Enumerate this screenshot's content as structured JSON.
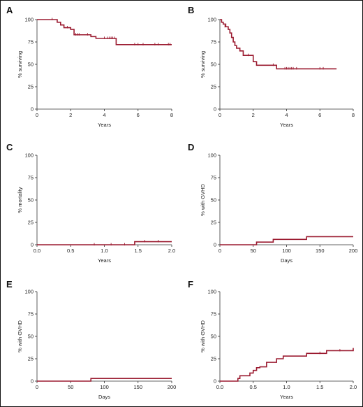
{
  "colors": {
    "curve": "#9b1b30",
    "axis": "#333333"
  },
  "chart_data": [
    {
      "panel": "A",
      "type": "line",
      "step": "post",
      "xlabel": "Years",
      "ylabel": "% surviving",
      "xlim": [
        0,
        8
      ],
      "ylim": [
        0,
        100
      ],
      "xticks": [
        "0",
        "2",
        "4",
        "6",
        "8"
      ],
      "yticks": [
        "0",
        "25",
        "50",
        "75",
        "100"
      ],
      "x": [
        0,
        1.2,
        1.4,
        1.6,
        2.0,
        2.2,
        3.2,
        3.5,
        4.7,
        8.0
      ],
      "y": [
        100,
        97,
        94,
        91,
        89,
        83,
        81,
        79,
        72,
        72
      ],
      "censor_x": [
        0.9,
        1.8,
        2.3,
        2.4,
        2.5,
        3.0,
        4.0,
        4.2,
        4.3,
        4.4,
        4.5,
        4.6,
        5.8,
        6.0,
        6.3,
        7.0,
        7.2,
        7.8,
        7.9
      ],
      "censor_y": [
        100,
        91,
        83,
        83,
        83,
        83,
        79,
        79,
        79,
        79,
        79,
        79,
        72,
        72,
        72,
        72,
        72,
        72,
        72
      ]
    },
    {
      "panel": "B",
      "type": "line",
      "step": "post",
      "xlabel": "Years",
      "ylabel": "% surviving",
      "xlim": [
        0,
        8
      ],
      "ylim": [
        0,
        100
      ],
      "xticks": [
        "0",
        "2",
        "4",
        "6",
        "8"
      ],
      "yticks": [
        "0",
        "25",
        "50",
        "75",
        "100"
      ],
      "x": [
        0,
        0.1,
        0.2,
        0.35,
        0.5,
        0.6,
        0.7,
        0.8,
        0.9,
        1.0,
        1.2,
        1.4,
        2.0,
        2.2,
        3.4,
        7.0
      ],
      "y": [
        100,
        97,
        95,
        92,
        89,
        85,
        80,
        75,
        71,
        68,
        65,
        60,
        53,
        49,
        45,
        45
      ],
      "censor_x": [
        0.3,
        1.7,
        3.2,
        3.9,
        4.0,
        4.1,
        4.2,
        4.3,
        4.4,
        4.6,
        6.0,
        6.2
      ],
      "censor_y": [
        92,
        60,
        49,
        45,
        45,
        45,
        45,
        45,
        45,
        45,
        45,
        45
      ]
    },
    {
      "panel": "C",
      "type": "line",
      "step": "post",
      "xlabel": "Years",
      "ylabel": "% mortality",
      "xlim": [
        0,
        2
      ],
      "ylim": [
        0,
        100
      ],
      "xticks": [
        "0.0",
        "0.5",
        "1.0",
        "1.5",
        "2.0"
      ],
      "yticks": [
        "0",
        "25",
        "50",
        "75",
        "100"
      ],
      "x": [
        0,
        1.45,
        2.0
      ],
      "y": [
        0,
        3.5,
        3.5
      ],
      "censor_x": [
        0.85,
        1.1,
        1.3,
        1.6,
        1.8
      ],
      "censor_y": [
        0,
        0,
        0,
        3.5,
        3.5
      ]
    },
    {
      "panel": "D",
      "type": "line",
      "step": "post",
      "xlabel": "Days",
      "ylabel": "% with GVHD",
      "xlim": [
        0,
        200
      ],
      "ylim": [
        0,
        100
      ],
      "xticks": [
        "0",
        "50",
        "100",
        "150",
        "200"
      ],
      "yticks": [
        "0",
        "25",
        "50",
        "75",
        "100"
      ],
      "x": [
        0,
        55,
        80,
        130,
        200
      ],
      "y": [
        0,
        3,
        6,
        9,
        9
      ],
      "censor_x": [],
      "censor_y": []
    },
    {
      "panel": "E",
      "type": "line",
      "step": "post",
      "xlabel": "Days",
      "ylabel": "% with GVHD",
      "xlim": [
        0,
        200
      ],
      "ylim": [
        0,
        100
      ],
      "xticks": [
        "0",
        "50",
        "100",
        "150",
        "200"
      ],
      "yticks": [
        "0",
        "25",
        "50",
        "75",
        "100"
      ],
      "x": [
        0,
        80,
        200
      ],
      "y": [
        0,
        3,
        3
      ],
      "censor_x": [],
      "censor_y": []
    },
    {
      "panel": "F",
      "type": "line",
      "step": "post",
      "xlabel": "Years",
      "ylabel": "% with GVHD",
      "xlim": [
        0,
        2
      ],
      "ylim": [
        0,
        100
      ],
      "xticks": [
        "0.0",
        "0.5",
        "1.0",
        "1.5",
        "2.0"
      ],
      "yticks": [
        "0",
        "25",
        "50",
        "75",
        "100"
      ],
      "x": [
        0,
        0.27,
        0.3,
        0.45,
        0.5,
        0.55,
        0.6,
        0.7,
        0.85,
        0.95,
        1.3,
        1.6,
        2.0
      ],
      "y": [
        0,
        3,
        6,
        9,
        12,
        15,
        16,
        21,
        25,
        28,
        31,
        34,
        37
      ],
      "censor_x": [
        1.5,
        1.8
      ],
      "censor_y": [
        31,
        34
      ]
    }
  ]
}
